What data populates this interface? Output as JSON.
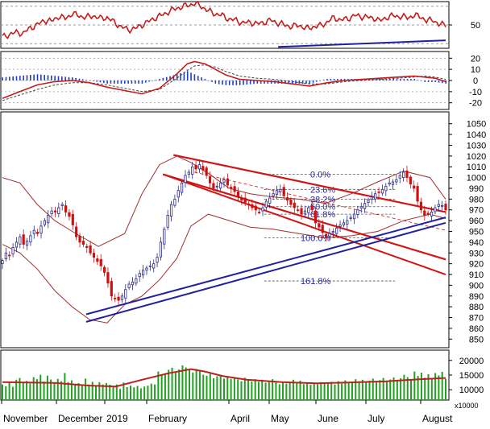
{
  "colors": {
    "price_up": "#2a2a8a",
    "price_down": "#cc1111",
    "bollinger": "#a03030",
    "channel": "#d01515",
    "trend_support": "#2020a0",
    "fib": "#2a2aa0",
    "volume_bar": "#21a021",
    "volume_ma": "#bb2020",
    "rsi_line": "#c41c1c",
    "macd_line": "#c41c1c",
    "macd_hist": "#1f3fbf",
    "grid": "#9a9a9a"
  },
  "chart_data": [
    {
      "type": "line",
      "name": "rsi-panel",
      "ylim": [
        25,
        75
      ],
      "yticks": [
        "50"
      ],
      "reference_levels": [
        30,
        50,
        70
      ],
      "points": [
        [
          0,
          37
        ],
        [
          4,
          40
        ],
        [
          8,
          42
        ],
        [
          12,
          41
        ],
        [
          16,
          47
        ],
        [
          20,
          50
        ],
        [
          24,
          55
        ],
        [
          28,
          54
        ],
        [
          32,
          59
        ],
        [
          36,
          57
        ],
        [
          40,
          62
        ],
        [
          44,
          60
        ],
        [
          48,
          58
        ],
        [
          52,
          60
        ],
        [
          56,
          57
        ],
        [
          60,
          58
        ],
        [
          64,
          53
        ],
        [
          68,
          48
        ],
        [
          72,
          45
        ],
        [
          76,
          46
        ],
        [
          80,
          50
        ],
        [
          84,
          54
        ],
        [
          88,
          58
        ],
        [
          92,
          61
        ],
        [
          96,
          65
        ],
        [
          100,
          68
        ],
        [
          104,
          70
        ],
        [
          108,
          72
        ],
        [
          110,
          73
        ],
        [
          114,
          70
        ],
        [
          118,
          65
        ],
        [
          122,
          62
        ],
        [
          126,
          60
        ],
        [
          130,
          56
        ],
        [
          134,
          55
        ],
        [
          138,
          52
        ],
        [
          142,
          53
        ],
        [
          146,
          51
        ],
        [
          150,
          53
        ],
        [
          154,
          55
        ],
        [
          158,
          52
        ],
        [
          162,
          50
        ],
        [
          166,
          48
        ],
        [
          170,
          50
        ],
        [
          174,
          46
        ],
        [
          178,
          48
        ],
        [
          182,
          49
        ],
        [
          186,
          53
        ],
        [
          190,
          58
        ],
        [
          194,
          55
        ],
        [
          198,
          57
        ],
        [
          202,
          60
        ],
        [
          206,
          59
        ],
        [
          210,
          58
        ],
        [
          214,
          57
        ],
        [
          216,
          54
        ],
        [
          220,
          58
        ],
        [
          224,
          60
        ],
        [
          228,
          59
        ],
        [
          232,
          58
        ],
        [
          236,
          60
        ],
        [
          240,
          59
        ],
        [
          243,
          54
        ],
        [
          247,
          56
        ],
        [
          250,
          50
        ],
        [
          254,
          51
        ]
      ]
    },
    {
      "type": "line",
      "name": "macd-panel",
      "ylim": [
        -26,
        26
      ],
      "yticks": [
        "20",
        "10",
        "0",
        "-10",
        "-20"
      ],
      "macd": [
        [
          0,
          -16
        ],
        [
          10,
          -10
        ],
        [
          20,
          -4
        ],
        [
          30,
          -1
        ],
        [
          40,
          0
        ],
        [
          50,
          -2
        ],
        [
          60,
          -6
        ],
        [
          70,
          -9
        ],
        [
          80,
          -12
        ],
        [
          90,
          -7
        ],
        [
          100,
          6
        ],
        [
          106,
          15
        ],
        [
          110,
          17
        ],
        [
          116,
          15
        ],
        [
          122,
          10
        ],
        [
          128,
          5
        ],
        [
          136,
          1
        ],
        [
          146,
          0
        ],
        [
          156,
          -1
        ],
        [
          166,
          -3
        ],
        [
          176,
          -5
        ],
        [
          186,
          -2
        ],
        [
          196,
          0
        ],
        [
          206,
          1
        ],
        [
          216,
          2
        ],
        [
          226,
          3
        ],
        [
          236,
          4
        ],
        [
          242,
          3
        ],
        [
          248,
          2
        ],
        [
          254,
          -1
        ]
      ],
      "signal": [
        [
          0,
          -18
        ],
        [
          10,
          -13
        ],
        [
          20,
          -8
        ],
        [
          30,
          -4
        ],
        [
          40,
          -2
        ],
        [
          50,
          -2
        ],
        [
          60,
          -4
        ],
        [
          70,
          -7
        ],
        [
          80,
          -10
        ],
        [
          90,
          -8
        ],
        [
          100,
          2
        ],
        [
          106,
          9
        ],
        [
          110,
          13
        ],
        [
          116,
          14
        ],
        [
          122,
          12
        ],
        [
          128,
          8
        ],
        [
          136,
          4
        ],
        [
          146,
          2
        ],
        [
          156,
          1
        ],
        [
          166,
          -1
        ],
        [
          176,
          -3
        ],
        [
          186,
          -3
        ],
        [
          196,
          -1
        ],
        [
          206,
          0
        ],
        [
          216,
          1
        ],
        [
          226,
          2
        ],
        [
          236,
          3
        ],
        [
          242,
          4
        ],
        [
          248,
          3
        ],
        [
          254,
          1
        ]
      ]
    },
    {
      "type": "candlestick",
      "name": "price-panel",
      "ylim": [
        842,
        1061
      ],
      "yticks": [
        "1050",
        "1040",
        "1030",
        "1020",
        "1010",
        "1000",
        "990",
        "980",
        "970",
        "960",
        "950",
        "940",
        "930",
        "920",
        "910",
        "900",
        "890",
        "880",
        "870",
        "860",
        "850"
      ],
      "x_axis_labels": [
        "November",
        "December",
        "2019",
        "February",
        "April",
        "May",
        "June",
        "July",
        "August"
      ],
      "closes": [
        923,
        930,
        928,
        935,
        940,
        945,
        938,
        941,
        946,
        951,
        948,
        955,
        960,
        965,
        969,
        968,
        972,
        975,
        968,
        964,
        956,
        945,
        940,
        938,
        935,
        930,
        926,
        922,
        918,
        912,
        902,
        890,
        888,
        886,
        890,
        896,
        901,
        903,
        906,
        911,
        914,
        916,
        918,
        920,
        926,
        940,
        952,
        965,
        975,
        980,
        988,
        995,
        1002,
        1005,
        1010,
        1008,
        1012,
        1007,
        1002,
        995,
        990,
        992,
        995,
        998,
        993,
        990,
        987,
        982,
        979,
        977,
        975,
        972,
        970,
        968,
        972,
        978,
        981,
        985,
        988,
        989,
        983,
        979,
        975,
        972,
        970,
        966,
        969,
        972,
        970,
        958,
        954,
        949,
        945,
        948,
        950,
        953,
        956,
        958,
        960,
        963,
        966,
        970,
        973,
        976,
        979,
        982,
        985,
        986,
        989,
        992,
        995,
        996,
        998,
        1002,
        1005,
        1000,
        994,
        990,
        978,
        970,
        965,
        966,
        968,
        972,
        975,
        974,
        970
      ],
      "bollinger_upper": [
        [
          0,
          1000
        ],
        [
          10,
          995
        ],
        [
          20,
          975
        ],
        [
          30,
          960
        ],
        [
          40,
          950
        ],
        [
          55,
          936
        ],
        [
          70,
          948
        ],
        [
          80,
          985
        ],
        [
          90,
          1012
        ],
        [
          100,
          1020
        ],
        [
          108,
          1014
        ],
        [
          118,
          1004
        ],
        [
          130,
          990
        ],
        [
          142,
          985
        ],
        [
          155,
          982
        ],
        [
          170,
          980
        ],
        [
          185,
          976
        ],
        [
          200,
          985
        ],
        [
          215,
          996
        ],
        [
          230,
          1006
        ],
        [
          245,
          1000
        ],
        [
          254,
          980
        ]
      ],
      "bollinger_lower": [
        [
          0,
          938
        ],
        [
          10,
          930
        ],
        [
          20,
          915
        ],
        [
          30,
          895
        ],
        [
          40,
          880
        ],
        [
          50,
          868
        ],
        [
          60,
          865
        ],
        [
          70,
          882
        ],
        [
          80,
          890
        ],
        [
          90,
          905
        ],
        [
          100,
          925
        ],
        [
          108,
          955
        ],
        [
          118,
          966
        ],
        [
          130,
          960
        ],
        [
          142,
          954
        ],
        [
          155,
          952
        ],
        [
          170,
          948
        ],
        [
          185,
          944
        ],
        [
          200,
          946
        ],
        [
          215,
          950
        ],
        [
          230,
          960
        ],
        [
          245,
          966
        ],
        [
          254,
          962
        ]
      ],
      "channel_upper_line": [
        [
          98,
          1021
        ],
        [
          254,
          968
        ]
      ],
      "channel_lower_line": [
        [
          92,
          1003
        ],
        [
          254,
          924
        ]
      ],
      "channel_extension_line": [
        [
          92,
          1003
        ],
        [
          254,
          910
        ]
      ],
      "support_line_1": [
        [
          48,
          873
        ],
        [
          254,
          963
        ]
      ],
      "support_line_2": [
        [
          48,
          866
        ],
        [
          254,
          958
        ]
      ],
      "fibonacci_levels": [
        {
          "label": "0.0%",
          "value": 1003
        },
        {
          "label": "23.6%",
          "value": 989
        },
        {
          "label": "38.2%",
          "value": 980
        },
        {
          "label": "50.0%",
          "value": 973
        },
        {
          "label": "61.8%",
          "value": 966
        },
        {
          "label": "100.0%",
          "value": 944
        },
        {
          "label": "161.8%",
          "value": 904
        }
      ],
      "fib_channel_labels": [
        "0.0%",
        "23.6%",
        "38.2%",
        "50.0%",
        "61.8%",
        "100.0%",
        "161.8%"
      ]
    },
    {
      "type": "bar",
      "name": "volume-panel",
      "ylim": [
        6500,
        23500
      ],
      "yticks": [
        "20000",
        "15000",
        "10000"
      ],
      "unit_label": "x10000",
      "volumes": [
        11800,
        11200,
        12500,
        11000,
        13400,
        14000,
        12600,
        13000,
        12100,
        14300,
        13600,
        15100,
        12800,
        14800,
        13500,
        12300,
        13700,
        12900,
        15700,
        12600,
        13200,
        11900,
        12300,
        11400,
        13800,
        11800,
        12700,
        11200,
        12600,
        11800,
        12300,
        11700,
        11300,
        11800,
        10300,
        12500,
        10900,
        11400,
        10800,
        11300,
        10500,
        11100,
        11400,
        12100,
        11800,
        16200,
        14900,
        15600,
        16800,
        17500,
        15800,
        16900,
        18300,
        17600,
        16700,
        15900,
        17100,
        16600,
        15100,
        14800,
        15400,
        13900,
        14600,
        15100,
        13800,
        14300,
        13700,
        14200,
        13500,
        12900,
        14100,
        13300,
        12800,
        13600,
        12700,
        13400,
        12400,
        13000,
        13600,
        12500,
        11900,
        12800,
        12100,
        12600,
        13400,
        12200,
        13100,
        11900,
        12500,
        11700,
        12300,
        11900,
        12600,
        12000,
        12400,
        12700,
        11800,
        12900,
        12100,
        13200,
        12300,
        12800,
        13600,
        12900,
        13400,
        12500,
        13100,
        13800,
        12700,
        13300,
        14000,
        12800,
        13500,
        14200,
        13100,
        13900,
        15100,
        14300,
        13600,
        16200,
        14700,
        15800,
        14100,
        15300,
        13800,
        15700,
        14900,
        16100,
        13700
      ],
      "volume_ma": [
        [
          0,
          12600
        ],
        [
          30,
          12300
        ],
        [
          50,
          11400
        ],
        [
          65,
          11100
        ],
        [
          80,
          13400
        ],
        [
          95,
          15600
        ],
        [
          108,
          17000
        ],
        [
          116,
          16200
        ],
        [
          126,
          14700
        ],
        [
          140,
          13400
        ],
        [
          160,
          12600
        ],
        [
          180,
          12200
        ],
        [
          200,
          12500
        ],
        [
          220,
          12900
        ],
        [
          240,
          13600
        ],
        [
          254,
          14000
        ]
      ]
    }
  ]
}
